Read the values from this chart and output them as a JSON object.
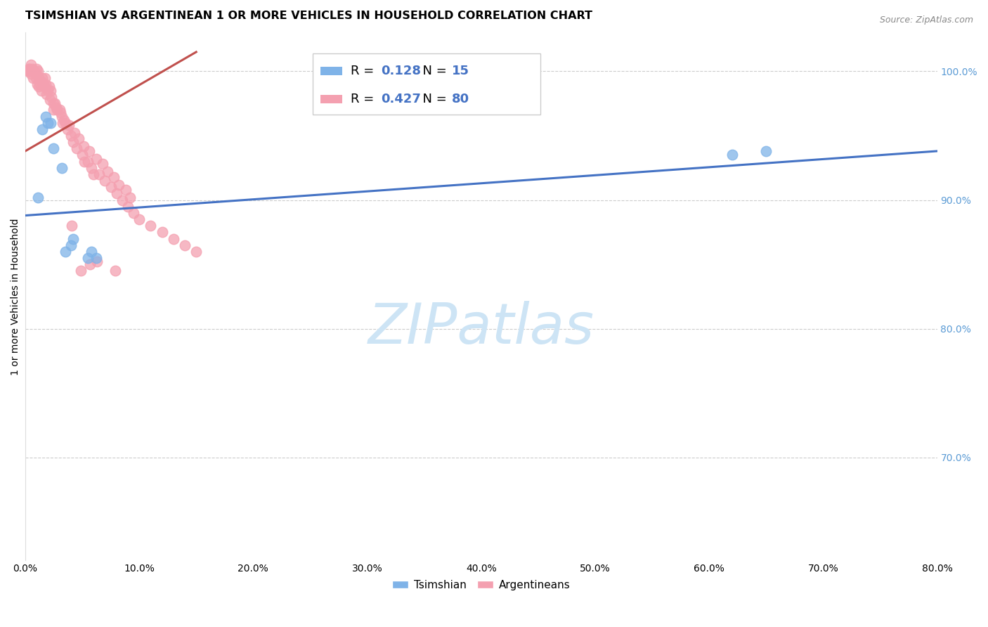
{
  "title": "TSIMSHIAN VS ARGENTINEAN 1 OR MORE VEHICLES IN HOUSEHOLD CORRELATION CHART",
  "source": "Source: ZipAtlas.com",
  "ylabel": "1 or more Vehicles in Household",
  "x_tick_labels": [
    "0.0%",
    "10.0%",
    "20.0%",
    "30.0%",
    "40.0%",
    "50.0%",
    "60.0%",
    "70.0%",
    "80.0%"
  ],
  "x_min": 0.0,
  "x_max": 80.0,
  "y_min": 62.0,
  "y_max": 103.0,
  "r1": "0.128",
  "n1": "15",
  "r2": "0.427",
  "n2": "80",
  "watermark": "ZIPatlas",
  "watermark_color": "#cde4f5",
  "blue_scatter_x": [
    1.5,
    1.8,
    2.0,
    2.2,
    2.5,
    3.2,
    4.0,
    4.2,
    5.5,
    5.8,
    6.2,
    62.0,
    65.0,
    1.1,
    3.5
  ],
  "blue_scatter_y": [
    95.5,
    96.5,
    96.0,
    96.0,
    94.0,
    92.5,
    86.5,
    87.0,
    85.5,
    86.0,
    85.5,
    93.5,
    93.8,
    90.2,
    86.0
  ],
  "pink_scatter_x": [
    0.2,
    0.3,
    0.5,
    0.5,
    0.6,
    0.8,
    0.9,
    1.0,
    1.0,
    1.1,
    1.2,
    1.3,
    1.4,
    1.5,
    1.6,
    1.7,
    1.8,
    2.0,
    2.1,
    2.2,
    2.3,
    2.5,
    2.6,
    2.8,
    3.0,
    3.2,
    3.5,
    3.7,
    4.0,
    4.2,
    4.5,
    5.0,
    5.2,
    5.5,
    5.8,
    6.0,
    6.5,
    7.0,
    7.5,
    8.0,
    8.5,
    9.0,
    9.5,
    10.0,
    11.0,
    12.0,
    13.0,
    14.0,
    15.0,
    0.4,
    0.7,
    1.15,
    1.45,
    1.65,
    1.85,
    2.15,
    2.7,
    3.1,
    3.4,
    3.8,
    4.3,
    4.7,
    5.1,
    5.6,
    6.2,
    6.8,
    7.2,
    7.8,
    8.2,
    8.8,
    9.2,
    0.35,
    1.05,
    2.45,
    3.3,
    4.1,
    4.9,
    5.7,
    6.3,
    7.9
  ],
  "pink_scatter_y": [
    100.0,
    100.2,
    99.8,
    100.5,
    100.2,
    100.0,
    99.5,
    99.8,
    100.2,
    100.0,
    99.5,
    99.0,
    99.2,
    99.5,
    99.0,
    99.5,
    99.0,
    98.5,
    98.8,
    98.5,
    98.0,
    97.5,
    97.5,
    97.0,
    97.0,
    96.5,
    96.0,
    95.5,
    95.0,
    94.5,
    94.0,
    93.5,
    93.0,
    93.0,
    92.5,
    92.0,
    92.0,
    91.5,
    91.0,
    90.5,
    90.0,
    89.5,
    89.0,
    88.5,
    88.0,
    87.5,
    87.0,
    86.5,
    86.0,
    100.0,
    99.5,
    98.8,
    98.5,
    98.8,
    98.2,
    97.8,
    97.2,
    96.8,
    96.2,
    95.8,
    95.2,
    94.8,
    94.2,
    93.8,
    93.2,
    92.8,
    92.2,
    91.8,
    91.2,
    90.8,
    90.2,
    100.2,
    99.0,
    97.0,
    96.0,
    88.0,
    84.5,
    85.0,
    85.2,
    84.5
  ],
  "blue_line_x": [
    0.0,
    80.0
  ],
  "blue_line_y": [
    88.8,
    93.8
  ],
  "pink_line_x": [
    0.0,
    15.0
  ],
  "pink_line_y": [
    93.8,
    101.5
  ],
  "dot_size": 110,
  "title_fontsize": 11.5,
  "axis_label_fontsize": 10,
  "tick_fontsize": 10,
  "legend_fontsize": 13,
  "blue_color": "#7fb3e8",
  "blue_line_color": "#4472c4",
  "pink_color": "#f4a0b0",
  "pink_line_color": "#c0504d",
  "grid_color": "#cccccc",
  "right_tick_color": "#5b9bd5",
  "accent_color": "#4472c4",
  "bottom_legend_labels": [
    "Tsimshian",
    "Argentineans"
  ]
}
